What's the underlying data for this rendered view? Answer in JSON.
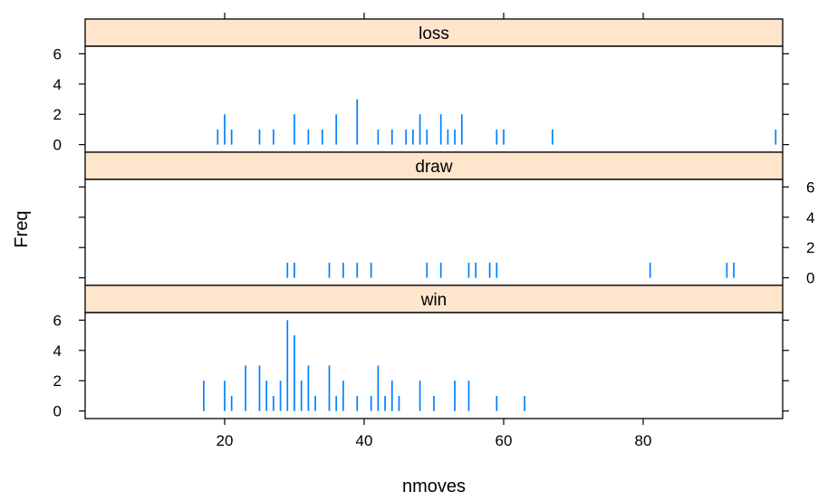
{
  "chart_data": {
    "type": "bar",
    "style": "spike-histogram",
    "layout": "lattice, 3 panels stacked, shared x axis",
    "xlabel": "nmoves",
    "ylabel": "Freq",
    "xlim": [
      0,
      100
    ],
    "ylim": [
      -0.5,
      6.5
    ],
    "x_ticks": [
      20,
      40,
      60,
      80
    ],
    "y_ticks": [
      0,
      2,
      4,
      6
    ],
    "strip_color": "#ffe5cc",
    "bar_color": "#0080ff",
    "panels": [
      {
        "name": "loss",
        "y_axis_side": "left",
        "x": [
          19,
          20,
          21,
          25,
          27,
          30,
          32,
          34,
          36,
          39,
          42,
          44,
          46,
          47,
          48,
          49,
          51,
          52,
          53,
          54,
          59,
          60,
          67,
          99
        ],
        "values": [
          1,
          2,
          1,
          1,
          1,
          2,
          1,
          1,
          2,
          3,
          1,
          1,
          1,
          1,
          2,
          1,
          2,
          1,
          1,
          2,
          1,
          1,
          1,
          1
        ]
      },
      {
        "name": "draw",
        "y_axis_side": "right",
        "x": [
          29,
          30,
          35,
          37,
          39,
          41,
          49,
          51,
          55,
          56,
          58,
          59,
          81,
          92,
          93
        ],
        "values": [
          1,
          1,
          1,
          1,
          1,
          1,
          1,
          1,
          1,
          1,
          1,
          1,
          1,
          1,
          1
        ]
      },
      {
        "name": "win",
        "y_axis_side": "left",
        "x": [
          17,
          20,
          21,
          23,
          25,
          26,
          27,
          28,
          29,
          30,
          31,
          32,
          33,
          35,
          36,
          37,
          39,
          41,
          42,
          43,
          44,
          45,
          48,
          50,
          53,
          55,
          59,
          63
        ],
        "values": [
          2,
          2,
          1,
          3,
          3,
          2,
          1,
          2,
          6,
          5,
          2,
          3,
          1,
          3,
          1,
          2,
          1,
          1,
          3,
          1,
          2,
          1,
          2,
          1,
          2,
          2,
          1,
          1
        ]
      }
    ]
  }
}
